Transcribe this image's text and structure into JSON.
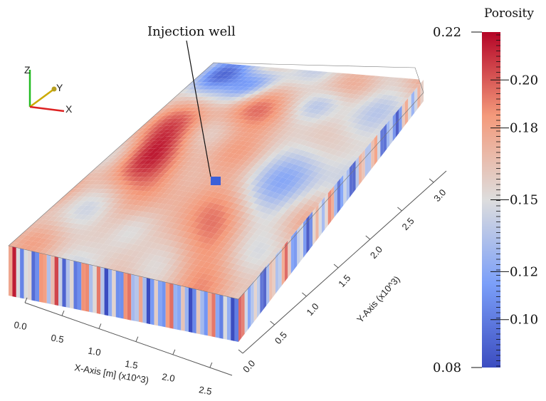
{
  "annotation": "Injection well",
  "colorbar": {
    "title": "Porosity",
    "min_label": "0.08",
    "max_label": "0.22",
    "tick_labels": [
      "0.20",
      "0.18",
      "0.15",
      "0.12",
      "0.10"
    ],
    "tick_values": [
      0.2,
      0.18,
      0.15,
      0.12,
      0.1
    ],
    "range": [
      0.08,
      0.22
    ],
    "colormap": "cool-to-warm",
    "colors": {
      "low": "#3b4cc0",
      "mid": "#dddddd",
      "high": "#b40426"
    }
  },
  "axes_triad": {
    "x": "X",
    "y": "Y",
    "z": "Z"
  },
  "chart_data": {
    "type": "heatmap",
    "title": "",
    "xlabel": "X-Axis [m] (x10^3)",
    "ylabel": "Y-Axis (x10^3)",
    "x_tick_labels": [
      "0.0",
      "0.5",
      "1.0",
      "1.5",
      "2.0",
      "2.5"
    ],
    "y_tick_labels": [
      "0.0",
      "0.5",
      "1.0",
      "1.5",
      "2.0",
      "2.5",
      "3.0"
    ],
    "xlim": [
      0,
      2.8
    ],
    "ylim": [
      0,
      3.2
    ],
    "value_label": "Porosity",
    "value_range": [
      0.08,
      0.22
    ],
    "injection_well": {
      "x": 1.7,
      "y": 1.7,
      "porosity": 0.1
    }
  }
}
